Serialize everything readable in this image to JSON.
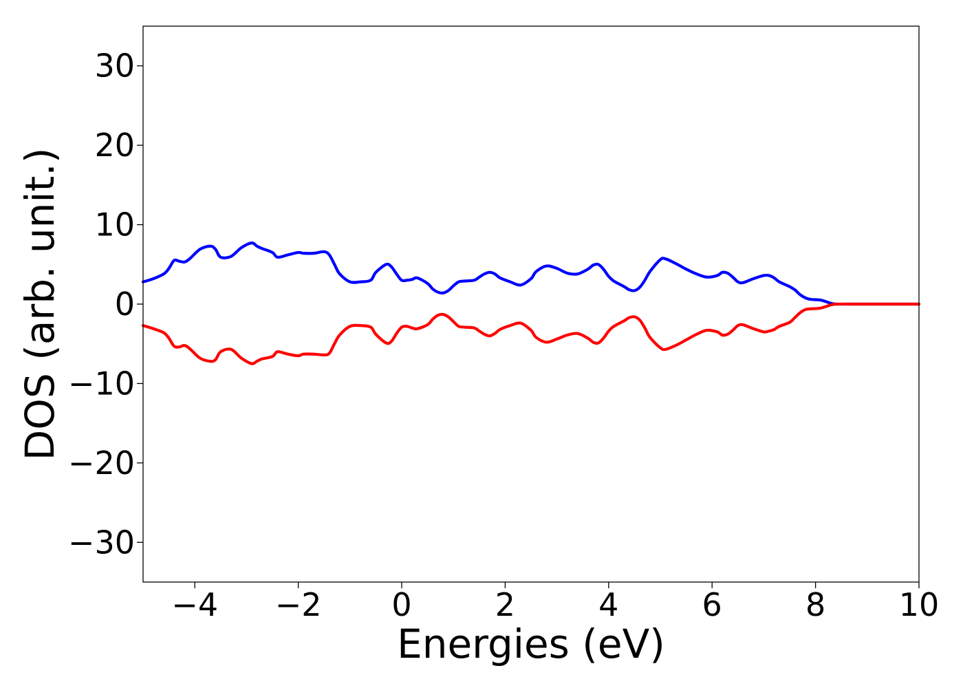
{
  "chart_data": {
    "type": "line",
    "title": "",
    "xlabel": "Energies (eV)",
    "ylabel": "DOS (arb. unit.)",
    "xlim": [
      -5,
      10
    ],
    "ylim": [
      -35,
      35
    ],
    "xticks": [
      -4,
      -2,
      0,
      2,
      4,
      6,
      8,
      10
    ],
    "xtick_labels": [
      "−4",
      "−2",
      "0",
      "2",
      "4",
      "6",
      "8",
      "10"
    ],
    "yticks": [
      30,
      20,
      10,
      0,
      -10,
      -20,
      -30
    ],
    "ytick_labels": [
      "30",
      "20",
      "10",
      "0",
      "−10",
      "−20",
      "−30"
    ],
    "grid": false,
    "legend": "none",
    "colors": {
      "up": "#0000ff",
      "down": "#ff0000"
    },
    "x": [
      -5.0,
      -4.8,
      -4.6,
      -4.5,
      -4.4,
      -4.3,
      -4.2,
      -4.1,
      -3.9,
      -3.7,
      -3.6,
      -3.5,
      -3.3,
      -3.1,
      -2.9,
      -2.8,
      -2.7,
      -2.5,
      -2.4,
      -2.2,
      -2.0,
      -1.9,
      -1.7,
      -1.5,
      -1.4,
      -1.3,
      -1.2,
      -1.0,
      -0.8,
      -0.6,
      -0.5,
      -0.3,
      -0.2,
      -0.1,
      0.0,
      0.1,
      0.2,
      0.3,
      0.5,
      0.6,
      0.7,
      0.8,
      0.9,
      1.0,
      1.1,
      1.2,
      1.4,
      1.5,
      1.6,
      1.7,
      1.8,
      1.9,
      2.1,
      2.3,
      2.5,
      2.6,
      2.8,
      3.0,
      3.2,
      3.4,
      3.6,
      3.7,
      3.8,
      3.9,
      4.0,
      4.1,
      4.3,
      4.4,
      4.5,
      4.6,
      4.7,
      4.8,
      5.0,
      5.1,
      5.3,
      5.5,
      5.7,
      5.9,
      6.1,
      6.2,
      6.3,
      6.4,
      6.5,
      6.6,
      6.8,
      7.0,
      7.1,
      7.2,
      7.3,
      7.5,
      7.6,
      7.7,
      7.8,
      7.9,
      8.1,
      8.3,
      8.4,
      8.6,
      9.0,
      9.5,
      10.0
    ],
    "series": [
      {
        "values": [
          2.8,
          3.2,
          3.8,
          4.5,
          5.5,
          5.4,
          5.3,
          5.7,
          6.9,
          7.3,
          6.9,
          5.9,
          6.0,
          7.1,
          7.7,
          7.3,
          7.0,
          6.5,
          5.9,
          6.2,
          6.5,
          6.4,
          6.4,
          6.6,
          6.2,
          5.0,
          3.8,
          2.8,
          2.8,
          3.0,
          4.0,
          5.0,
          4.7,
          3.8,
          3.0,
          3.0,
          3.1,
          3.3,
          2.6,
          1.9,
          1.5,
          1.4,
          1.7,
          2.3,
          2.8,
          2.9,
          3.0,
          3.4,
          3.8,
          4.0,
          3.8,
          3.3,
          2.8,
          2.4,
          3.2,
          4.1,
          4.8,
          4.5,
          3.9,
          3.8,
          4.4,
          4.9,
          5.0,
          4.4,
          3.5,
          2.9,
          2.2,
          1.8,
          1.7,
          2.1,
          3.0,
          4.1,
          5.6,
          5.7,
          5.1,
          4.4,
          3.8,
          3.4,
          3.6,
          4.0,
          3.9,
          3.4,
          2.8,
          2.7,
          3.2,
          3.6,
          3.6,
          3.3,
          2.8,
          2.2,
          1.8,
          1.2,
          0.8,
          0.6,
          0.5,
          0.1,
          0.0,
          0.0,
          0.0,
          0.0,
          0.0
        ]
      },
      {
        "values": [
          -2.7,
          -3.1,
          -3.6,
          -4.3,
          -5.3,
          -5.4,
          -5.2,
          -5.6,
          -6.8,
          -7.2,
          -7.0,
          -6.0,
          -5.7,
          -6.8,
          -7.5,
          -7.2,
          -6.9,
          -6.6,
          -6.0,
          -6.3,
          -6.5,
          -6.3,
          -6.3,
          -6.4,
          -6.2,
          -5.0,
          -3.9,
          -2.8,
          -2.7,
          -2.9,
          -3.8,
          -4.9,
          -4.7,
          -3.7,
          -2.9,
          -2.8,
          -3.0,
          -3.1,
          -2.6,
          -1.9,
          -1.4,
          -1.3,
          -1.6,
          -2.2,
          -2.8,
          -2.9,
          -3.0,
          -3.4,
          -3.8,
          -4.0,
          -3.7,
          -3.2,
          -2.7,
          -2.4,
          -3.3,
          -4.2,
          -4.8,
          -4.4,
          -3.9,
          -3.7,
          -4.3,
          -4.8,
          -4.9,
          -4.3,
          -3.4,
          -2.8,
          -2.1,
          -1.7,
          -1.6,
          -2.0,
          -3.0,
          -4.2,
          -5.5,
          -5.7,
          -5.2,
          -4.5,
          -3.8,
          -3.3,
          -3.5,
          -3.9,
          -3.8,
          -3.3,
          -2.7,
          -2.6,
          -3.1,
          -3.5,
          -3.4,
          -3.2,
          -2.8,
          -2.3,
          -1.7,
          -1.1,
          -0.7,
          -0.6,
          -0.5,
          -0.1,
          0.0,
          0.0,
          0.0,
          0.0,
          0.0
        ]
      }
    ]
  }
}
